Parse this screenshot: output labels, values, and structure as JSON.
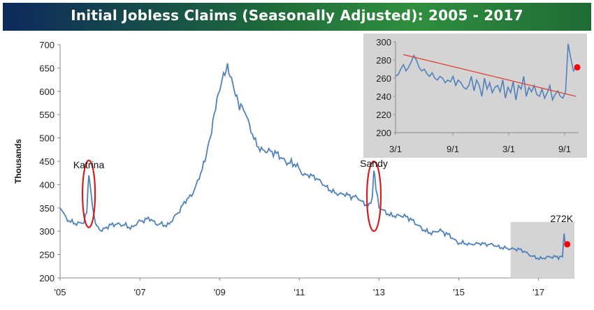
{
  "title": "Initial Jobless Claims (Seasonally Adjusted): 2005 - 2017",
  "colors": {
    "line": "#4f81bd",
    "marker": "#ff0000",
    "ellipse": "#d21f1f",
    "trend": "#e0453a",
    "shade": "#d4d4d4"
  },
  "chart_data": [
    {
      "type": "line",
      "ylabel": "Thousands",
      "ylim": [
        200,
        700
      ],
      "yticks": [
        "700",
        "650",
        "600",
        "550",
        "500",
        "450",
        "400",
        "350",
        "300",
        "250",
        "200"
      ],
      "xticks": [
        "'05",
        "'07",
        "'09",
        "'11",
        "'13",
        "'15",
        "'17"
      ],
      "xlim": [
        2005,
        2017.9
      ],
      "grid": false,
      "annotations": [
        {
          "text": "Katrina",
          "x": 2005.7,
          "y": 380
        },
        {
          "text": "Sandy",
          "x": 2012.85,
          "y": 370
        },
        {
          "text": "272K",
          "x": 2017.62,
          "y": 272
        }
      ],
      "shaded_region": [
        2016.3,
        2017.9
      ],
      "series": [
        {
          "x": [
            2005.0,
            2005.15,
            2005.3,
            2005.45,
            2005.6,
            2005.67,
            2005.72,
            2005.78,
            2005.85,
            2005.95,
            2006.05,
            2006.2,
            2006.35,
            2006.5,
            2006.65,
            2006.8,
            2006.95,
            2007.1,
            2007.25,
            2007.4,
            2007.55,
            2007.7,
            2007.85,
            2008.0,
            2008.15,
            2008.3,
            2008.45,
            2008.6,
            2008.7,
            2008.8,
            2008.9,
            2009.0,
            2009.1,
            2009.2,
            2009.3,
            2009.4,
            2009.5,
            2009.6,
            2009.75,
            2009.9,
            2010.05,
            2010.2,
            2010.35,
            2010.5,
            2010.65,
            2010.8,
            2010.95,
            2011.1,
            2011.25,
            2011.4,
            2011.55,
            2011.7,
            2011.85,
            2012.0,
            2012.15,
            2012.3,
            2012.45,
            2012.6,
            2012.75,
            2012.83,
            2012.87,
            2012.92,
            2013.0,
            2013.15,
            2013.3,
            2013.45,
            2013.6,
            2013.75,
            2013.9,
            2014.05,
            2014.2,
            2014.35,
            2014.5,
            2014.65,
            2014.8,
            2014.95,
            2015.1,
            2015.25,
            2015.4,
            2015.55,
            2015.7,
            2015.85,
            2016.0,
            2016.15,
            2016.3,
            2016.45,
            2016.6,
            2016.75,
            2016.9,
            2017.05,
            2017.2,
            2017.35,
            2017.5,
            2017.6,
            2017.64,
            2017.68,
            2017.72
          ],
          "values": [
            350,
            330,
            325,
            320,
            318,
            340,
            420,
            380,
            335,
            310,
            300,
            305,
            310,
            315,
            318,
            312,
            320,
            318,
            322,
            315,
            320,
            318,
            330,
            340,
            360,
            375,
            410,
            450,
            480,
            510,
            560,
            600,
            640,
            660,
            630,
            590,
            560,
            560,
            530,
            500,
            480,
            470,
            460,
            455,
            450,
            455,
            445,
            420,
            415,
            410,
            405,
            398,
            390,
            380,
            375,
            368,
            372,
            365,
            360,
            372,
            430,
            390,
            350,
            345,
            340,
            336,
            330,
            322,
            315,
            310,
            305,
            300,
            300,
            290,
            285,
            278,
            280,
            275,
            272,
            270,
            268,
            272,
            270,
            268,
            262,
            258,
            255,
            250,
            248,
            245,
            245,
            242,
            240,
            245,
            295,
            275,
            272
          ]
        }
      ]
    },
    {
      "type": "line",
      "xticks": [
        "3/1",
        "9/1",
        "3/1",
        "9/1"
      ],
      "yticks": [
        "300",
        "280",
        "260",
        "240",
        "220",
        "200"
      ],
      "ylim": [
        200,
        300
      ],
      "grid": false,
      "inset": true,
      "series": [
        {
          "x": [
            0,
            2,
            4,
            6,
            8,
            10,
            12,
            14,
            16,
            18,
            20,
            22,
            24,
            26,
            28,
            30,
            32,
            34,
            36,
            38,
            40,
            42,
            44,
            46,
            48,
            50,
            52,
            54,
            56,
            58,
            60,
            62,
            64,
            66,
            68,
            70,
            72,
            74,
            76,
            78,
            80,
            82,
            84,
            86,
            88,
            90,
            92,
            94,
            96,
            98,
            100,
            102,
            104,
            106,
            108,
            110,
            112,
            114,
            116,
            118,
            120,
            122,
            124,
            126,
            128,
            130,
            132,
            134,
            136,
            138
          ],
          "values": [
            262,
            264,
            270,
            275,
            268,
            272,
            278,
            285,
            280,
            272,
            268,
            270,
            265,
            262,
            266,
            260,
            258,
            262,
            260,
            255,
            258,
            256,
            262,
            252,
            258,
            255,
            250,
            248,
            252,
            262,
            246,
            258,
            252,
            240,
            260,
            248,
            255,
            244,
            250,
            252,
            245,
            258,
            238,
            250,
            244,
            256,
            236,
            252,
            248,
            262,
            240,
            250,
            245,
            252,
            242,
            240,
            248,
            238,
            244,
            252,
            236,
            242,
            246,
            240,
            238,
            245,
            298,
            282,
            268,
            272
          ]
        },
        {
          "name": "",
          "x": [
            6,
            138
          ],
          "values": [
            286,
            240
          ]
        }
      ],
      "marker": {
        "x": 139,
        "y": 272
      }
    }
  ]
}
